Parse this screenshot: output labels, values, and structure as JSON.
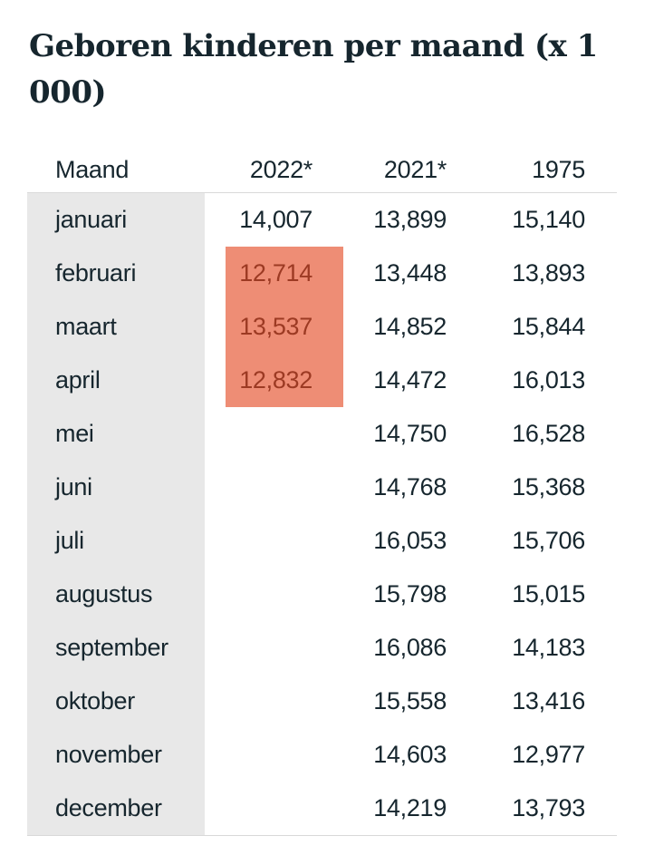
{
  "title": "Geboren kinderen per maand (x 1 000)",
  "colors": {
    "text": "#16262e",
    "row_label_bg": "#e8e8e8",
    "border": "#d9d9d9",
    "highlight_bg": "#ee8d75",
    "highlight_text": "#9c3a23"
  },
  "table": {
    "columns": [
      "Maand",
      "2022*",
      "2021*",
      "1975"
    ],
    "rows": [
      {
        "maand": "januari",
        "v2022": "14,007",
        "v2021": "13,899",
        "v1975": "15,140",
        "highlight": false
      },
      {
        "maand": "februari",
        "v2022": "12,714",
        "v2021": "13,448",
        "v1975": "13,893",
        "highlight": true
      },
      {
        "maand": "maart",
        "v2022": "13,537",
        "v2021": "14,852",
        "v1975": "15,844",
        "highlight": true
      },
      {
        "maand": "april",
        "v2022": "12,832",
        "v2021": "14,472",
        "v1975": "16,013",
        "highlight": true
      },
      {
        "maand": "mei",
        "v2022": "",
        "v2021": "14,750",
        "v1975": "16,528",
        "highlight": false
      },
      {
        "maand": "juni",
        "v2022": "",
        "v2021": "14,768",
        "v1975": "15,368",
        "highlight": false
      },
      {
        "maand": "juli",
        "v2022": "",
        "v2021": "16,053",
        "v1975": "15,706",
        "highlight": false
      },
      {
        "maand": "augustus",
        "v2022": "",
        "v2021": "15,798",
        "v1975": "15,015",
        "highlight": false
      },
      {
        "maand": "september",
        "v2022": "",
        "v2021": "16,086",
        "v1975": "14,183",
        "highlight": false
      },
      {
        "maand": "oktober",
        "v2022": "",
        "v2021": "15,558",
        "v1975": "13,416",
        "highlight": false
      },
      {
        "maand": "november",
        "v2022": "",
        "v2021": "14,603",
        "v1975": "12,977",
        "highlight": false
      },
      {
        "maand": "december",
        "v2022": "",
        "v2021": "14,219",
        "v1975": "13,793",
        "highlight": false
      }
    ]
  },
  "chart_data": {
    "type": "table",
    "title": "Geboren kinderen per maand (x 1 000)",
    "unit": "x 1 000",
    "categories": [
      "januari",
      "februari",
      "maart",
      "april",
      "mei",
      "juni",
      "juli",
      "augustus",
      "september",
      "oktober",
      "november",
      "december"
    ],
    "series": [
      {
        "name": "2022*",
        "values": [
          14.007,
          12.714,
          13.537,
          12.832,
          null,
          null,
          null,
          null,
          null,
          null,
          null,
          null
        ]
      },
      {
        "name": "2021*",
        "values": [
          13.899,
          13.448,
          14.852,
          14.472,
          14.75,
          14.768,
          16.053,
          15.798,
          16.086,
          15.558,
          14.603,
          14.219
        ]
      },
      {
        "name": "1975",
        "values": [
          15.14,
          13.893,
          15.844,
          16.013,
          16.528,
          15.368,
          15.706,
          15.015,
          14.183,
          13.416,
          12.977,
          13.793
        ]
      }
    ],
    "highlighted_cells": {
      "series": "2022*",
      "months": [
        "februari",
        "maart",
        "april"
      ]
    },
    "layout": {
      "row_label_column_shaded": true,
      "numbers_right_aligned": true
    }
  }
}
